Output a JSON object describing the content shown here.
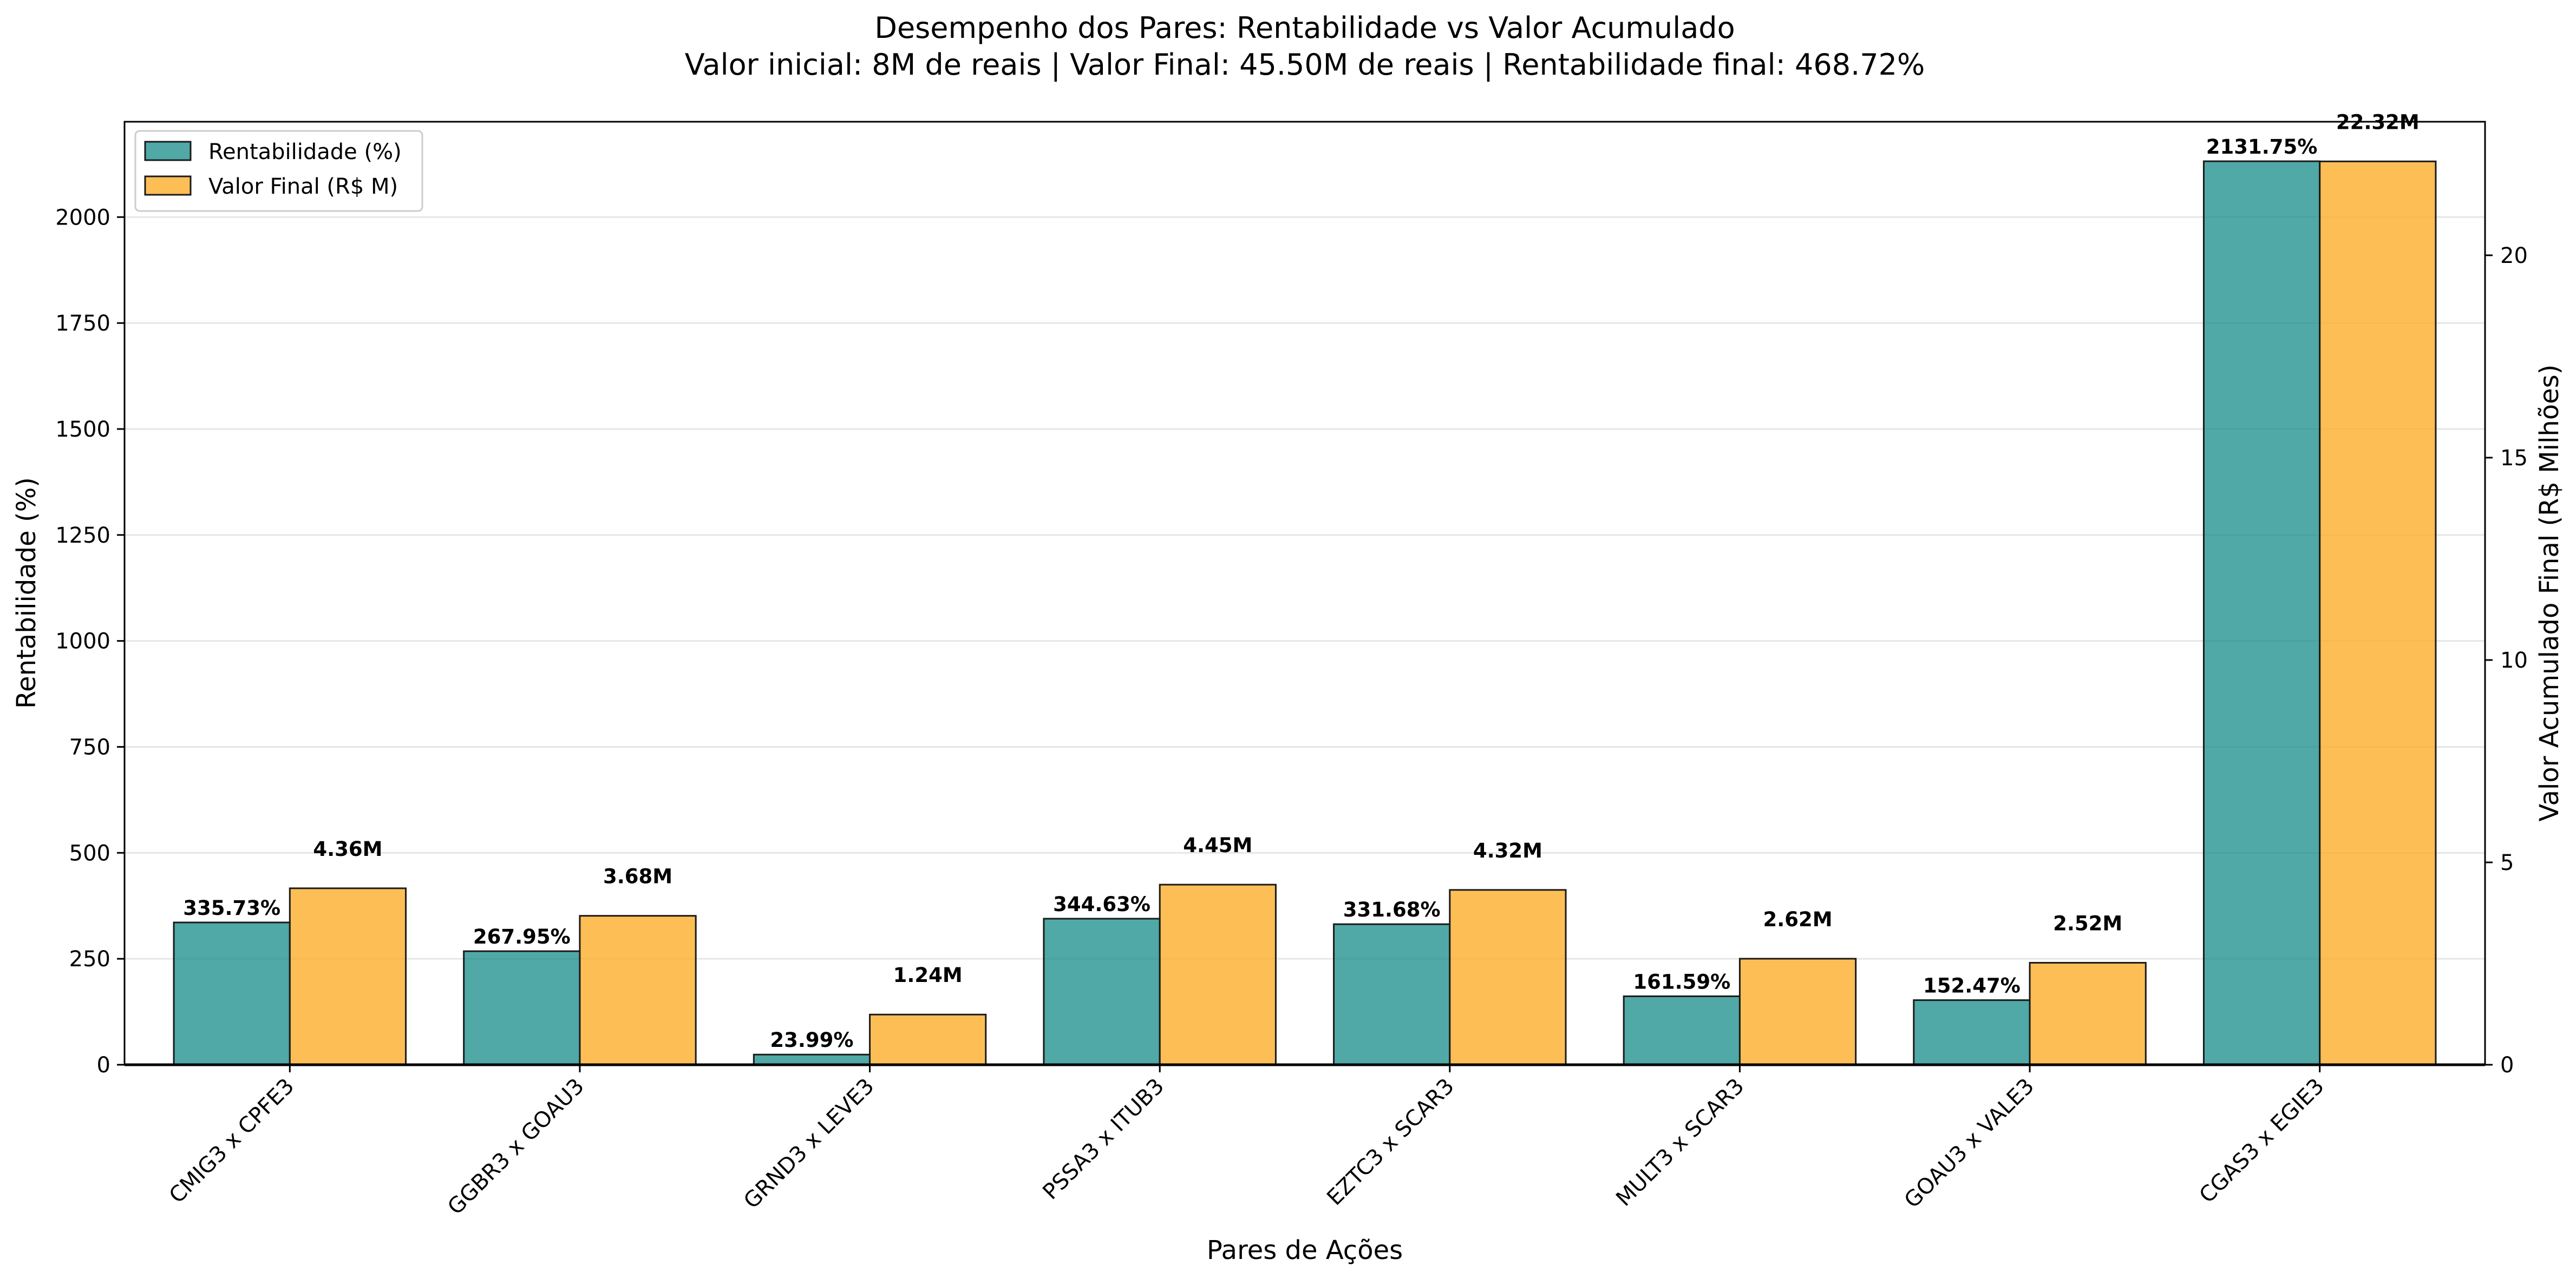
{
  "chart_data": {
    "type": "bar",
    "title": "Desempenho dos Pares: Rentabilidade vs Valor Acumulado",
    "subtitle": "Valor inicial: 8M de reais |  Valor Final: 45.50M de reais |  Rentabilidade final: 468.72%",
    "xlabel": "Pares de Ações",
    "ylabel_left": "Rentabilidade (%)",
    "ylabel_right": "Valor Acumulado Final (R$ Milhões)",
    "categories": [
      "CMIG3 x CPFE3",
      "GGBR3 x GOAU3",
      "GRND3 x LEVE3",
      "PSSA3 x ITUB3",
      "EZTC3 x SCAR3",
      "MULT3 x SCAR3",
      "GOAU3 x VALE3",
      "CGAS3 x EGIE3"
    ],
    "series": [
      {
        "name": "Rentabilidade (%)",
        "axis": "left",
        "color": "#168b89",
        "values": [
          335.73,
          267.95,
          23.99,
          344.63,
          331.68,
          161.59,
          152.47,
          2131.75
        ],
        "labels": [
          "335.73%",
          "267.95%",
          "23.99%",
          "344.63%",
          "331.68%",
          "161.59%",
          "152.47%",
          "2131.75%"
        ]
      },
      {
        "name": "Valor Final (R$ M)",
        "axis": "right",
        "color": "#fdae2a",
        "values": [
          4.36,
          3.68,
          1.24,
          4.45,
          4.32,
          2.62,
          2.52,
          22.32
        ],
        "labels": [
          "4.36M",
          "3.68M",
          "1.24M",
          "4.45M",
          "4.32M",
          "2.62M",
          "2.52M",
          "22.32M"
        ]
      }
    ],
    "ylim_left": [
      0,
      2225
    ],
    "ylim_right": [
      0,
      23.3
    ],
    "yticks_left": [
      0,
      250,
      500,
      750,
      1000,
      1250,
      1500,
      1750,
      2000
    ],
    "yticks_right": [
      0,
      5,
      10,
      15,
      20
    ],
    "grid": "horizontal",
    "legend_position": "top-left"
  }
}
